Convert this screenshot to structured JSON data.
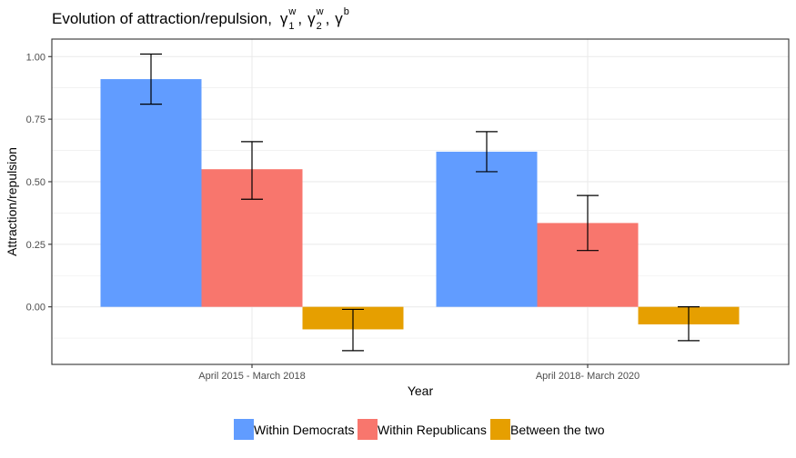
{
  "chart_data": {
    "type": "bar",
    "title": "Evolution of attraction/repulsion,",
    "title_symbols": [
      {
        "base": "γ",
        "sub": "1",
        "sup": "w"
      },
      {
        "base": "γ",
        "sub": "2",
        "sup": "w"
      },
      {
        "base": "γ",
        "sub": "",
        "sup": "b"
      }
    ],
    "xlabel": "Year",
    "ylabel": "Attraction/repulsion",
    "categories": [
      "April 2015 - March 2018",
      "April 2018- March 2020"
    ],
    "ylim": [
      -0.23,
      1.07
    ],
    "yticks": [
      0.0,
      0.25,
      0.5,
      0.75,
      1.0
    ],
    "ytick_labels": [
      "0.00",
      "0.25",
      "0.50",
      "0.75",
      "1.00"
    ],
    "grid": true,
    "legend_position": "bottom",
    "series": [
      {
        "name": "Within Democrats",
        "color": "#619CFF",
        "values": [
          0.91,
          0.62
        ],
        "err_low": [
          0.81,
          0.54
        ],
        "err_high": [
          1.01,
          0.7
        ]
      },
      {
        "name": "Within Republicans",
        "color": "#F8766D",
        "values": [
          0.55,
          0.335
        ],
        "err_low": [
          0.43,
          0.225
        ],
        "err_high": [
          0.66,
          0.445
        ]
      },
      {
        "name": "Between the two",
        "color": "#E69F00",
        "values": [
          -0.09,
          -0.07
        ],
        "err_low": [
          -0.175,
          -0.135
        ],
        "err_high": [
          -0.01,
          0.0
        ]
      }
    ]
  }
}
